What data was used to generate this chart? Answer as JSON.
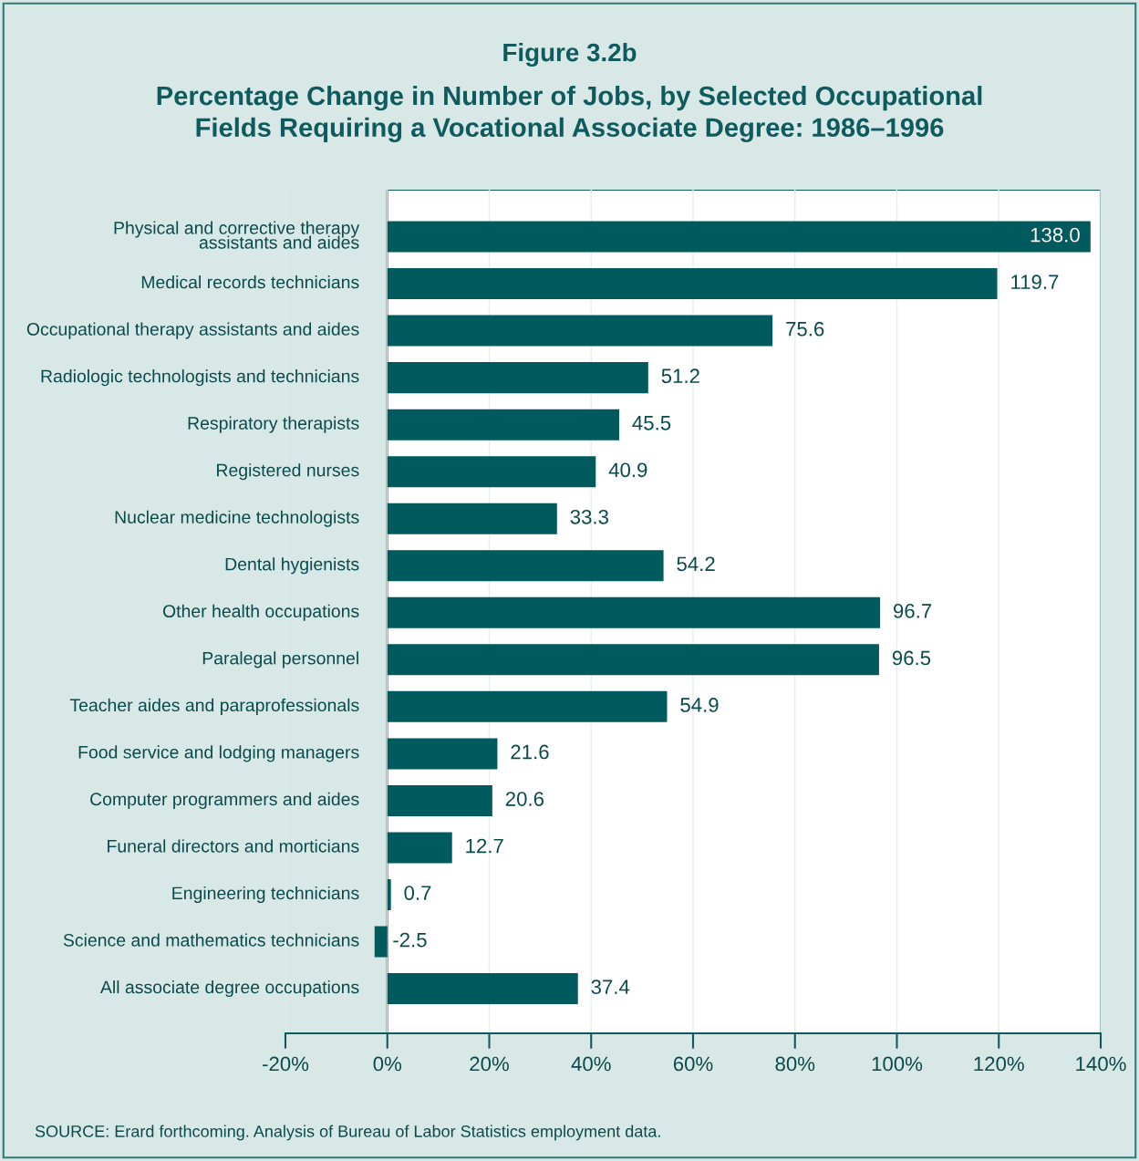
{
  "chart_data": {
    "type": "bar",
    "orientation": "horizontal",
    "title": "Figure 3.2b",
    "subtitle": "Percentage Change in Number of Jobs, by Selected Occupational\nFields Requiring a Vocational Associate Degree: 1986–1996",
    "categories": [
      "Physical and corrective therapy\nassistants and aides",
      "Medical records technicians",
      "Occupational therapy assistants and aides",
      "Radiologic technologists and technicians",
      "Respiratory therapists",
      "Registered nurses",
      "Nuclear medicine technologists",
      "Dental hygienists",
      "Other health occupations",
      "Paralegal personnel",
      "Teacher aides and paraprofessionals",
      "Food service and lodging managers",
      "Computer programmers and aides",
      "Funeral directors and morticians",
      "Engineering technicians",
      "Science and mathematics technicians",
      "All associate degree occupations"
    ],
    "values": [
      138.0,
      119.7,
      75.6,
      51.2,
      45.5,
      40.9,
      33.3,
      54.2,
      96.7,
      96.5,
      54.9,
      21.6,
      20.6,
      12.7,
      0.7,
      -2.5,
      37.4
    ],
    "value_labels": [
      "138.0",
      "119.7",
      "75.6",
      "51.2",
      "45.5",
      "40.9",
      "33.3",
      "54.2",
      "96.7",
      "96.5",
      "54.9",
      "21.6",
      "20.6",
      "12.7",
      "0.7",
      "-2.5",
      "37.4"
    ],
    "color": "#005a5e",
    "xlim": [
      -20,
      140
    ],
    "xticks": [
      {
        "value": -20,
        "label": "-20%"
      },
      {
        "value": 0,
        "label": "0%"
      },
      {
        "value": 20,
        "label": "20%"
      },
      {
        "value": 40,
        "label": "40%"
      },
      {
        "value": 60,
        "label": "60%"
      },
      {
        "value": 80,
        "label": "80%"
      },
      {
        "value": 100,
        "label": "100%"
      },
      {
        "value": 120,
        "label": "120%"
      },
      {
        "value": 140,
        "label": "140%"
      }
    ],
    "grid": "x",
    "bands": [
      {
        "axis": "x",
        "from": 0,
        "to": 140,
        "color": "#ffffff"
      }
    ],
    "annotations": [
      "SOURCE: Erard forthcoming. Analysis of Bureau of Labor Statistics employment data."
    ]
  }
}
